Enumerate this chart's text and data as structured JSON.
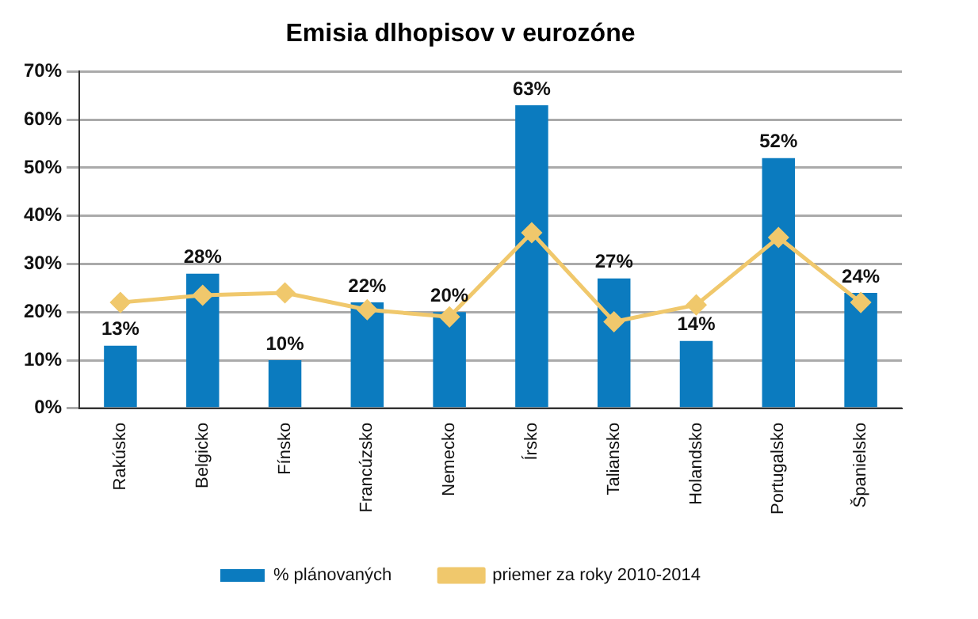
{
  "chart_data": {
    "type": "bar",
    "title": "Emisia dlhopisov v eurozóne",
    "categories": [
      "Rakúsko",
      "Belgicko",
      "Fínsko",
      "Francúzsko",
      "Nemecko",
      "Írsko",
      "Taliansko",
      "Holandsko",
      "Portugalsko",
      "Španielsko"
    ],
    "series": [
      {
        "name": "% plánovaných",
        "color": "#0b7bbf",
        "values": [
          13,
          28,
          10,
          22,
          20,
          63,
          27,
          14,
          52,
          24
        ],
        "value_labels": [
          "13%",
          "28%",
          "10%",
          "22%",
          "20%",
          "63%",
          "27%",
          "14%",
          "52%",
          "24%"
        ]
      },
      {
        "name": "priemer za roky 2010-2014",
        "type": "line",
        "color": "#f0c86c",
        "marker": "diamond",
        "values": [
          22,
          23.5,
          24,
          20.5,
          19,
          36.5,
          18,
          21.5,
          35.5,
          22
        ]
      }
    ],
    "ylim": [
      0,
      70
    ],
    "yticks": [
      {
        "value": 0,
        "label": "0%"
      },
      {
        "value": 10,
        "label": "10%"
      },
      {
        "value": 20,
        "label": "20%"
      },
      {
        "value": 30,
        "label": "30%"
      },
      {
        "value": 40,
        "label": "40%"
      },
      {
        "value": 50,
        "label": "50%"
      },
      {
        "value": 60,
        "label": "60%"
      },
      {
        "value": 70,
        "label": "70%"
      }
    ],
    "grid": "y",
    "legend": "bottom"
  }
}
